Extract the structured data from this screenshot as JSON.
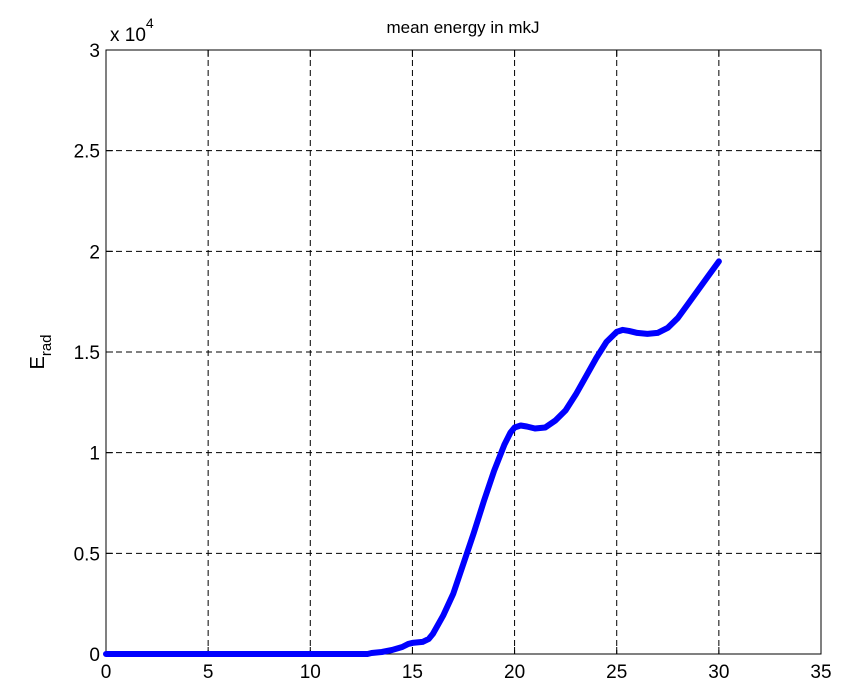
{
  "chart_data": {
    "type": "line",
    "title": "mean energy in mkJ",
    "ylabel_main": "E",
    "ylabel_sub": "rad",
    "xlabel": "",
    "xlim": [
      0,
      35
    ],
    "ylim": [
      0,
      30000
    ],
    "x_ticks": [
      0,
      5,
      10,
      15,
      20,
      25,
      30,
      35
    ],
    "x_tick_labels": [
      "0",
      "5",
      "10",
      "15",
      "20",
      "25",
      "30",
      "35"
    ],
    "y_ticks": [
      0,
      5000,
      10000,
      15000,
      20000,
      25000,
      30000
    ],
    "y_tick_labels": [
      "0",
      "0.5",
      "1",
      "1.5",
      "2",
      "2.5",
      "3"
    ],
    "y_multiplier_base": "x 10",
    "y_multiplier_exponent": "4",
    "grid": true,
    "line_color": "#0000ff",
    "series": [
      {
        "x": [
          0,
          2,
          4,
          6,
          8,
          10,
          12,
          12.8,
          13,
          13.5,
          14,
          14.5,
          14.8,
          15,
          15.5,
          15.8,
          16,
          16.5,
          17,
          17.5,
          18,
          18.5,
          19,
          19.5,
          19.8,
          20,
          20.3,
          20.6,
          21,
          21.5,
          22,
          22.5,
          23,
          23.5,
          24,
          24.5,
          25,
          25.3,
          25.6,
          26,
          26.5,
          27,
          27.5,
          28,
          28.5,
          29,
          29.5,
          30
        ],
        "y": [
          0,
          0,
          0,
          0,
          0,
          0,
          0,
          0,
          50,
          100,
          200,
          350,
          500,
          550,
          600,
          750,
          1000,
          1900,
          3000,
          4500,
          6000,
          7600,
          9100,
          10400,
          11000,
          11250,
          11350,
          11300,
          11200,
          11250,
          11600,
          12100,
          12900,
          13800,
          14700,
          15500,
          16000,
          16100,
          16050,
          15950,
          15900,
          15950,
          16200,
          16700,
          17400,
          18100,
          18800,
          19500
        ]
      }
    ]
  }
}
